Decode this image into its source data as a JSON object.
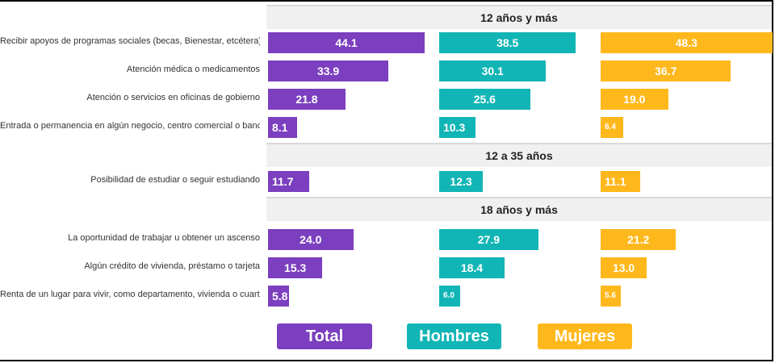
{
  "colors": {
    "total": "#7b3fbf",
    "hombres": "#12b5b5",
    "mujeres": "#ffb81c"
  },
  "chart_data": {
    "type": "bar",
    "orientation": "horizontal",
    "xlim": [
      0,
      100
    ],
    "grid": false,
    "legend_position": "bottom",
    "series_names": [
      "Total",
      "Hombres",
      "Mujeres"
    ],
    "groups": [
      {
        "title": "12 años y más",
        "rows": [
          {
            "label": "Recibir apoyos de programas sociales (becas, Bienestar, etcétera)",
            "values": [
              44.1,
              38.5,
              48.3
            ],
            "display": [
              "44.1",
              "38.5",
              "48.3"
            ]
          },
          {
            "label": "Atención médica o medicamentos",
            "values": [
              33.9,
              30.1,
              36.7
            ],
            "display": [
              "33.9",
              "30.1",
              "36.7"
            ]
          },
          {
            "label": "Atención o servicios en oficinas de gobierno",
            "values": [
              21.8,
              25.6,
              19.0
            ],
            "display": [
              "21.8",
              "25.6",
              "19.0"
            ]
          },
          {
            "label": "Entrada o permanencia en algún negocio, centro comercial o banco",
            "values": [
              8.1,
              10.3,
              6.4
            ],
            "display": [
              "8.1",
              "10.3",
              "6.4"
            ]
          }
        ]
      },
      {
        "title": "12 a 35 años",
        "rows": [
          {
            "label": "Posibilidad de estudiar o seguir estudiando",
            "values": [
              11.7,
              12.3,
              11.1
            ],
            "display": [
              "11.7",
              "12.3",
              "11.1"
            ]
          }
        ]
      },
      {
        "title": "18 años y más",
        "rows": [
          {
            "label": "La oportunidad de trabajar u obtener un ascenso",
            "values": [
              24.0,
              27.9,
              21.2
            ],
            "display": [
              "24.0",
              "27.9",
              "21.2"
            ]
          },
          {
            "label": "Algún crédito de vivienda, préstamo o tarjeta",
            "values": [
              15.3,
              18.4,
              13.0
            ],
            "display": [
              "15.3",
              "18.4",
              "13.0"
            ]
          },
          {
            "label": "Renta de un lugar para vivir, como departamento, vivienda o cuarto",
            "values": [
              5.8,
              6.0,
              5.6
            ],
            "display": [
              "5.8",
              "6.0",
              "5.6"
            ]
          }
        ]
      }
    ]
  },
  "legend": {
    "total": "Total",
    "hombres": "Hombres",
    "mujeres": "Mujeres"
  }
}
